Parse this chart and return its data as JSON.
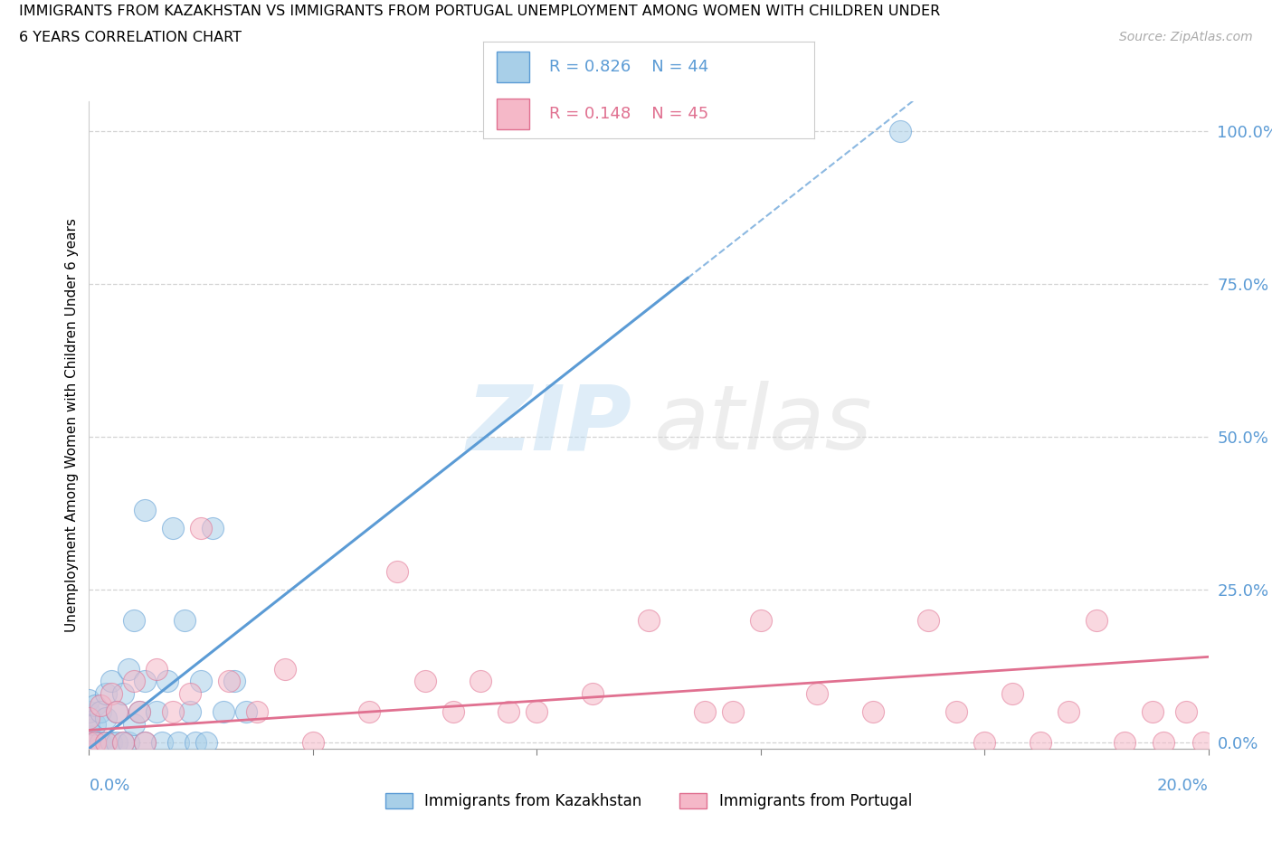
{
  "title_line1": "IMMIGRANTS FROM KAZAKHSTAN VS IMMIGRANTS FROM PORTUGAL UNEMPLOYMENT AMONG WOMEN WITH CHILDREN UNDER",
  "title_line2": "6 YEARS CORRELATION CHART",
  "source": "Source: ZipAtlas.com",
  "xlabel_bottom_left": "0.0%",
  "xlabel_bottom_right": "20.0%",
  "ylabel": "Unemployment Among Women with Children Under 6 years",
  "y_ticks": [
    0.0,
    0.25,
    0.5,
    0.75,
    1.0
  ],
  "y_tick_labels": [
    "0.0%",
    "25.0%",
    "50.0%",
    "75.0%",
    "100.0%"
  ],
  "x_range": [
    0.0,
    0.2
  ],
  "y_range": [
    -0.01,
    1.05
  ],
  "legend_kaz": "Immigrants from Kazakhstan",
  "legend_por": "Immigrants from Portugal",
  "R_kaz": 0.826,
  "N_kaz": 44,
  "R_por": 0.148,
  "N_por": 45,
  "color_kaz": "#a8cfe8",
  "color_por": "#f5b8c8",
  "color_kaz_line": "#5b9bd5",
  "color_por_line": "#e07090",
  "color_tick": "#5b9bd5",
  "x_ticks": [
    0.0,
    0.04,
    0.08,
    0.12,
    0.16,
    0.2
  ],
  "kaz_x": [
    0.0,
    0.0,
    0.0,
    0.0,
    0.0,
    0.0,
    0.0,
    0.001,
    0.001,
    0.001,
    0.002,
    0.002,
    0.003,
    0.003,
    0.003,
    0.004,
    0.004,
    0.005,
    0.005,
    0.006,
    0.006,
    0.007,
    0.007,
    0.008,
    0.008,
    0.009,
    0.01,
    0.01,
    0.01,
    0.012,
    0.013,
    0.014,
    0.015,
    0.016,
    0.017,
    0.018,
    0.019,
    0.02,
    0.021,
    0.022,
    0.024,
    0.026,
    0.028,
    0.145
  ],
  "kaz_y": [
    0.0,
    0.0,
    0.01,
    0.02,
    0.03,
    0.05,
    0.07,
    0.0,
    0.03,
    0.06,
    0.0,
    0.05,
    0.0,
    0.04,
    0.08,
    0.0,
    0.1,
    0.0,
    0.05,
    0.0,
    0.08,
    0.0,
    0.12,
    0.03,
    0.2,
    0.05,
    0.0,
    0.1,
    0.38,
    0.05,
    0.0,
    0.1,
    0.35,
    0.0,
    0.2,
    0.05,
    0.0,
    0.1,
    0.0,
    0.35,
    0.05,
    0.1,
    0.05,
    1.0
  ],
  "por_x": [
    0.0,
    0.0,
    0.001,
    0.002,
    0.003,
    0.004,
    0.005,
    0.006,
    0.008,
    0.009,
    0.01,
    0.012,
    0.015,
    0.018,
    0.02,
    0.025,
    0.03,
    0.035,
    0.04,
    0.05,
    0.055,
    0.06,
    0.065,
    0.07,
    0.075,
    0.08,
    0.09,
    0.1,
    0.11,
    0.115,
    0.12,
    0.13,
    0.14,
    0.15,
    0.155,
    0.16,
    0.165,
    0.17,
    0.175,
    0.18,
    0.185,
    0.19,
    0.192,
    0.196,
    0.199
  ],
  "por_y": [
    0.0,
    0.04,
    0.0,
    0.06,
    0.0,
    0.08,
    0.05,
    0.0,
    0.1,
    0.05,
    0.0,
    0.12,
    0.05,
    0.08,
    0.35,
    0.1,
    0.05,
    0.12,
    0.0,
    0.05,
    0.28,
    0.1,
    0.05,
    0.1,
    0.05,
    0.05,
    0.08,
    0.2,
    0.05,
    0.05,
    0.2,
    0.08,
    0.05,
    0.2,
    0.05,
    0.0,
    0.08,
    0.0,
    0.05,
    0.2,
    0.0,
    0.05,
    0.0,
    0.05,
    0.0
  ],
  "kaz_slope": 7.2,
  "kaz_intercept": -0.01,
  "por_slope": 0.6,
  "por_intercept": 0.02
}
